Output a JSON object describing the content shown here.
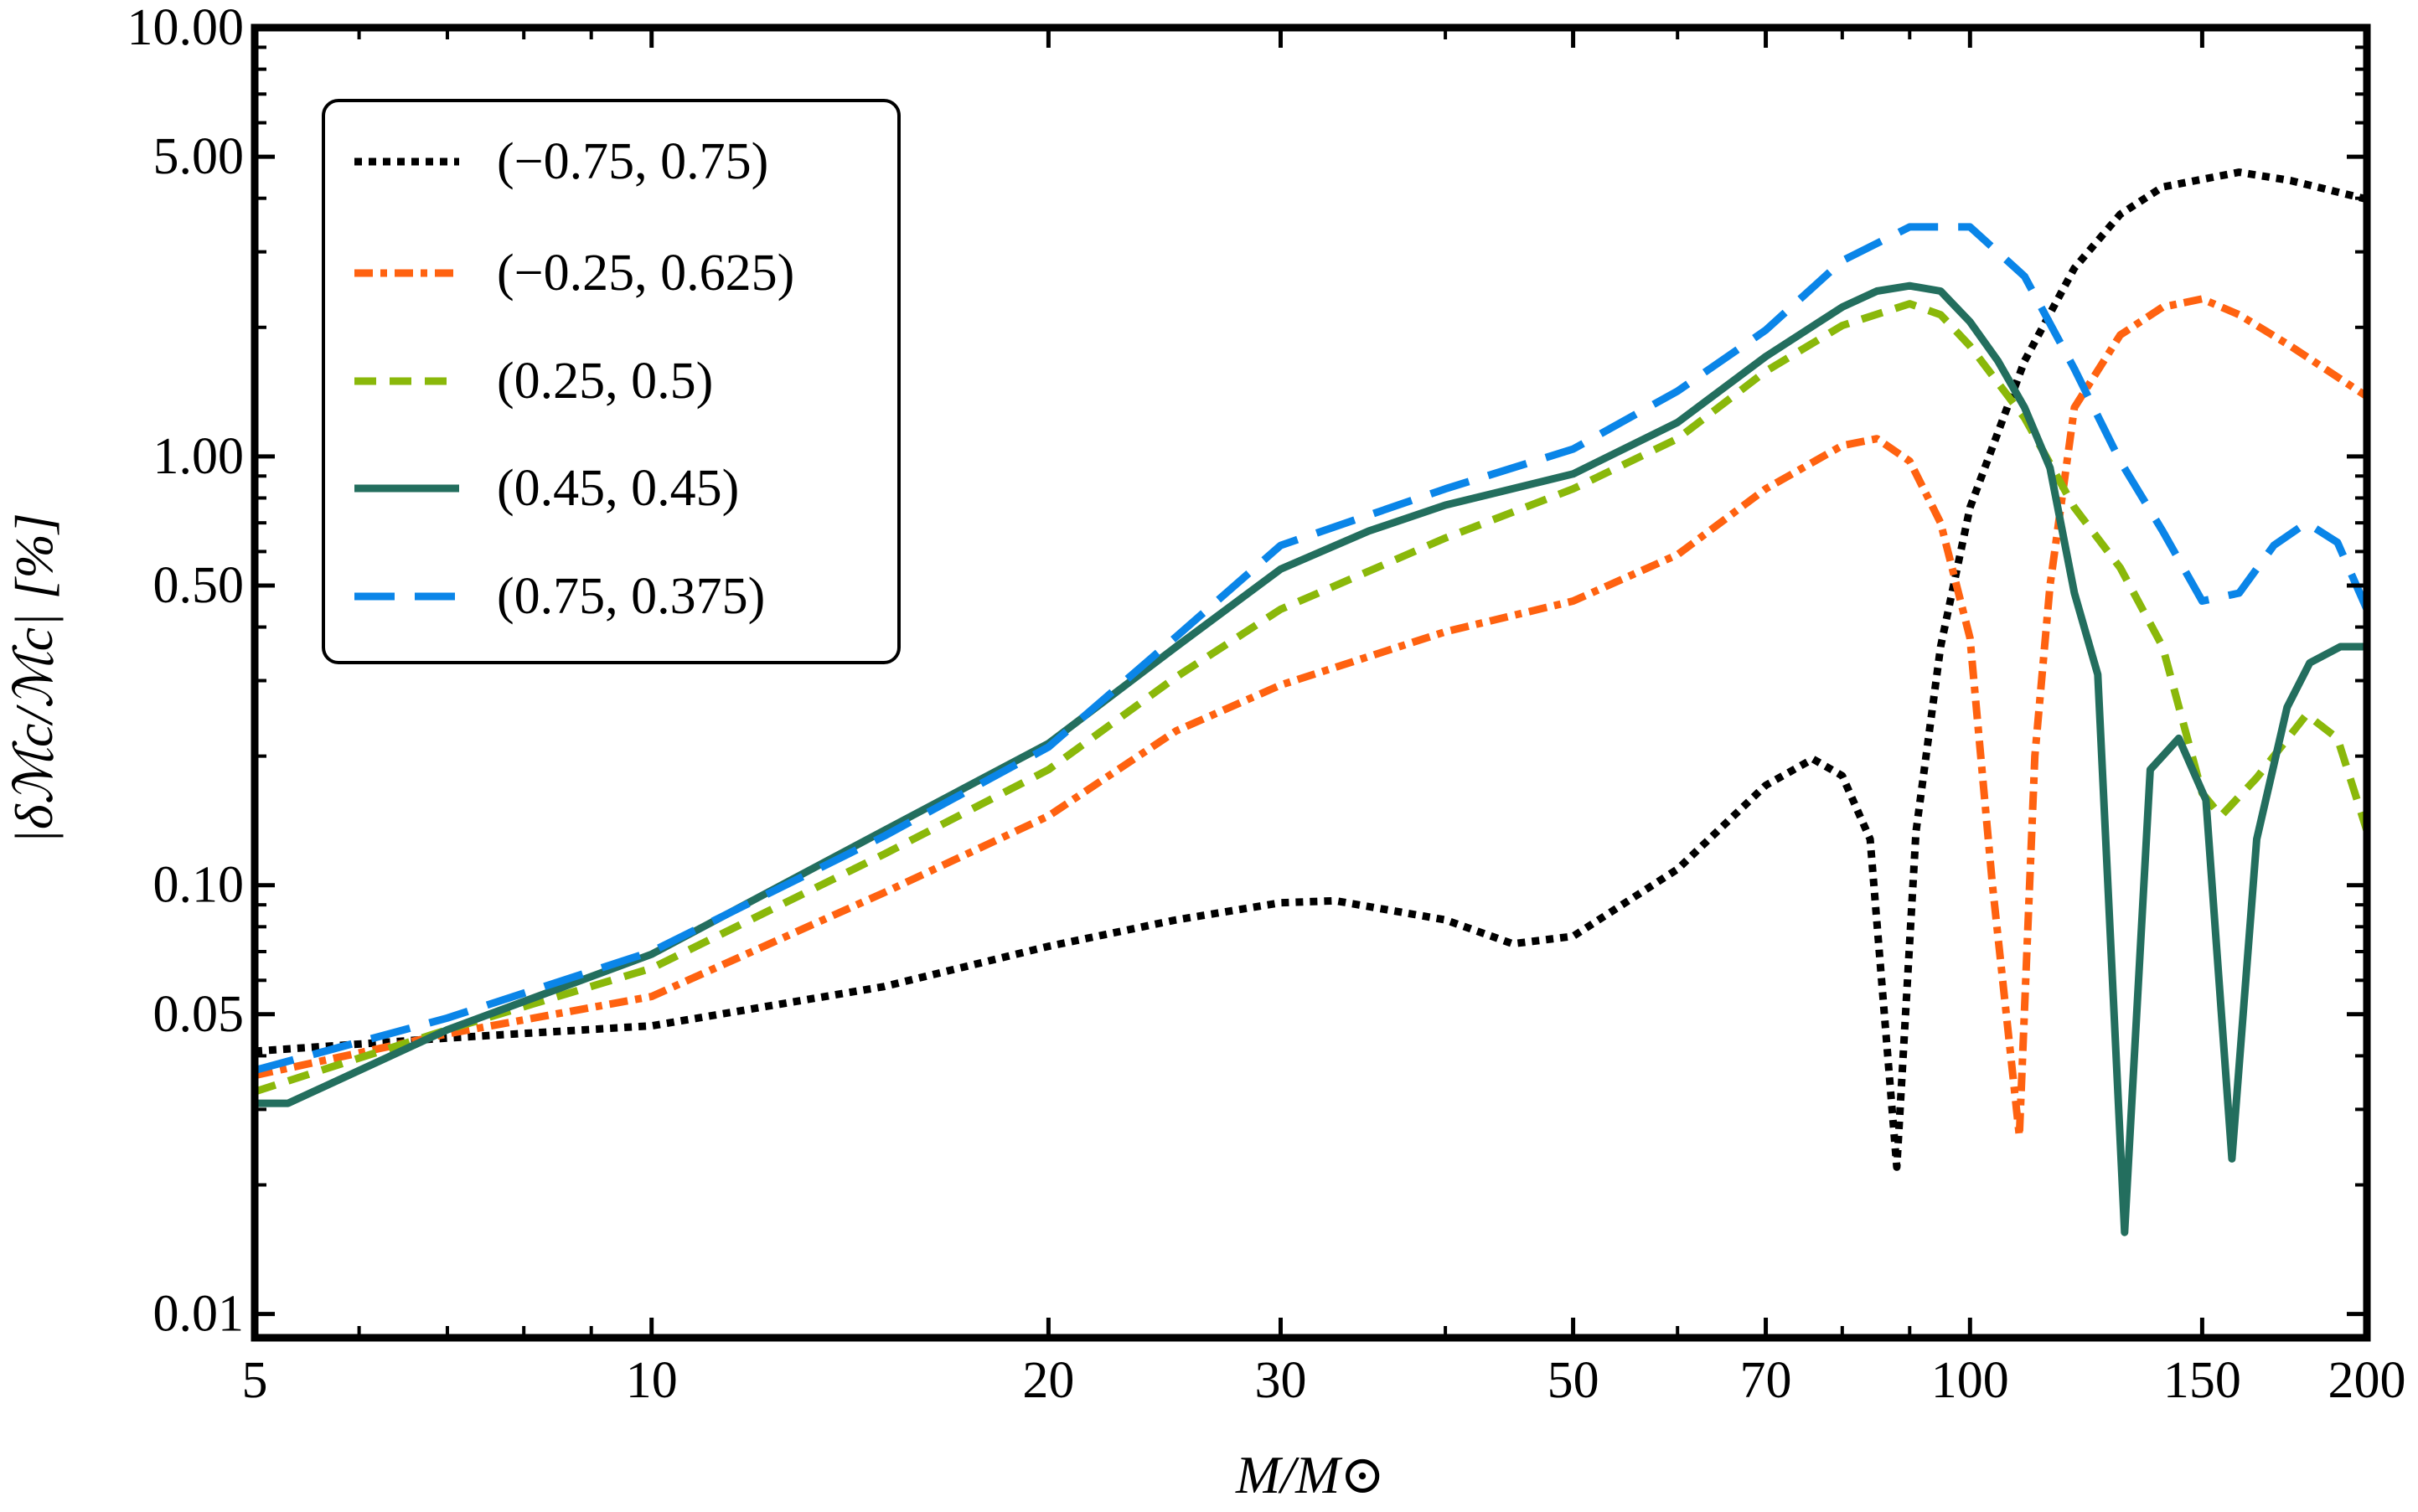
{
  "chart_data": {
    "type": "line",
    "title": "",
    "xlabel": "M/M⊙",
    "ylabel": "|δℳc/ℳc| [%]",
    "xscale": "log",
    "yscale": "log",
    "xlim": [
      5,
      200
    ],
    "ylim": [
      0.0088,
      10
    ],
    "xticks": [
      5,
      10,
      20,
      30,
      50,
      70,
      100,
      150,
      200
    ],
    "xtick_labels": [
      "5",
      "10",
      "20",
      "30",
      "50",
      "70",
      "100",
      "150",
      "200"
    ],
    "yticks": [
      10,
      5,
      1,
      0.5,
      0.1,
      0.05,
      0.01
    ],
    "ytick_labels": [
      "10.00",
      "5.00",
      "1.00",
      "0.50",
      "0.10",
      "0.05",
      "0.01"
    ],
    "grid": false,
    "legend_position": "top-left",
    "series": [
      {
        "name": "(−0.75, 0.75)",
        "color": "#000000",
        "style": "dotted",
        "x": [
          5,
          7,
          10,
          15,
          20,
          25,
          30,
          33,
          40,
          45,
          50,
          60,
          70,
          76,
          80,
          84,
          88,
          91,
          95,
          100,
          110,
          120,
          130,
          140,
          160,
          175,
          200
        ],
        "y": [
          0.041,
          0.044,
          0.047,
          0.058,
          0.072,
          0.083,
          0.091,
          0.092,
          0.083,
          0.073,
          0.076,
          0.109,
          0.171,
          0.197,
          0.18,
          0.128,
          0.022,
          0.133,
          0.36,
          0.76,
          1.67,
          2.75,
          3.67,
          4.25,
          4.6,
          4.4,
          3.98
        ]
      },
      {
        "name": "(−0.25, 0.625)",
        "color": "#ff6210",
        "style": "dashdot",
        "x": [
          5,
          7,
          10,
          15,
          20,
          25,
          30,
          40,
          50,
          60,
          70,
          80,
          85,
          90,
          95,
          100,
          104,
          109,
          112,
          115,
          120,
          130,
          140,
          150,
          160,
          175,
          200
        ],
        "y": [
          0.036,
          0.045,
          0.055,
          0.096,
          0.145,
          0.229,
          0.293,
          0.39,
          0.46,
          0.59,
          0.84,
          1.06,
          1.1,
          0.975,
          0.7,
          0.377,
          0.1,
          0.026,
          0.2,
          0.5,
          1.3,
          1.92,
          2.23,
          2.33,
          2.14,
          1.81,
          1.38
        ]
      },
      {
        "name": "(0.25, 0.5)",
        "color": "#8ab80a",
        "style": "dashed",
        "x": [
          5,
          7,
          10,
          15,
          20,
          25,
          30,
          40,
          50,
          60,
          70,
          80,
          90,
          95,
          100,
          110,
          120,
          130,
          140,
          150,
          155,
          165,
          180,
          190,
          200
        ],
        "y": [
          0.033,
          0.046,
          0.064,
          0.118,
          0.186,
          0.306,
          0.44,
          0.645,
          0.84,
          1.1,
          1.58,
          2.02,
          2.27,
          2.14,
          1.81,
          1.23,
          0.76,
          0.55,
          0.36,
          0.164,
          0.145,
          0.178,
          0.25,
          0.22,
          0.134
        ]
      },
      {
        "name": "(0.45, 0.45)",
        "color": "#236e5e",
        "style": "solid",
        "x": [
          5,
          5.3,
          7,
          10,
          15,
          20,
          25,
          30,
          35,
          40,
          50,
          60,
          70,
          80,
          85,
          90,
          95,
          100,
          105,
          110,
          115,
          120,
          125,
          131,
          137,
          144,
          151,
          158,
          165,
          174,
          181,
          191,
          200
        ],
        "y": [
          0.031,
          0.031,
          0.046,
          0.069,
          0.134,
          0.214,
          0.36,
          0.546,
          0.67,
          0.77,
          0.91,
          1.2,
          1.71,
          2.23,
          2.43,
          2.5,
          2.43,
          2.06,
          1.67,
          1.3,
          0.94,
          0.48,
          0.31,
          0.0155,
          0.186,
          0.22,
          0.158,
          0.023,
          0.128,
          0.26,
          0.33,
          0.36,
          0.36
        ]
      },
      {
        "name": "(0.75, 0.375)",
        "color": "#0a85e8",
        "style": "longdash",
        "x": [
          5,
          7,
          10,
          15,
          20,
          25,
          30,
          40,
          50,
          60,
          70,
          80,
          90,
          100,
          110,
          120,
          130,
          140,
          150,
          160,
          170,
          180,
          190,
          200
        ],
        "y": [
          0.037,
          0.049,
          0.07,
          0.13,
          0.21,
          0.38,
          0.62,
          0.84,
          1.04,
          1.42,
          1.97,
          2.86,
          3.43,
          3.43,
          2.63,
          1.6,
          0.975,
          0.67,
          0.46,
          0.48,
          0.62,
          0.7,
          0.63,
          0.44
        ]
      }
    ]
  }
}
